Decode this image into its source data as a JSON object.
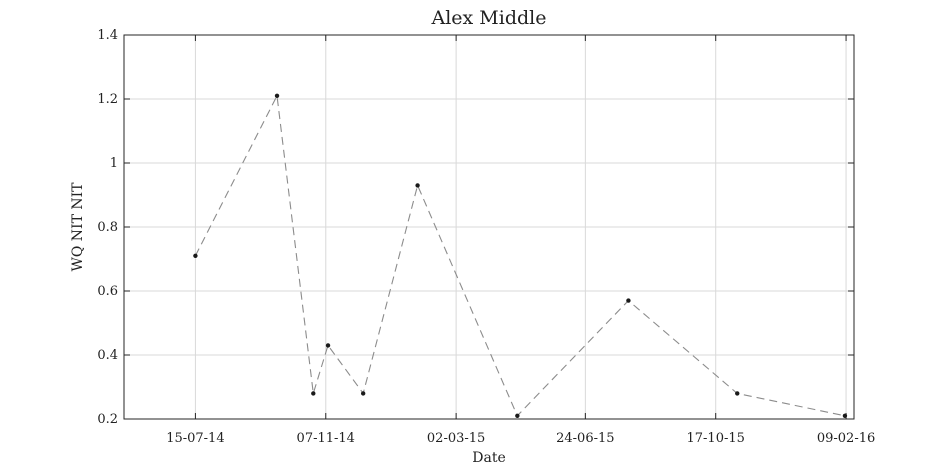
{
  "chart_data": {
    "type": "line",
    "title": "Alex Middle",
    "xlabel": "Date",
    "ylabel": "WQ NIT NIT",
    "x_axis_type": "date",
    "x_tick_format": "DD-MM-YY",
    "xlim": [
      "2014-05-13",
      "2016-02-16"
    ],
    "ylim": [
      0.2,
      1.4
    ],
    "x_ticks": [
      "2014-07-15",
      "2014-11-07",
      "2015-03-02",
      "2015-06-24",
      "2015-10-17",
      "2016-02-09"
    ],
    "x_tick_labels": [
      "15-07-14",
      "07-11-14",
      "02-03-15",
      "24-06-15",
      "17-10-15",
      "09-02-16"
    ],
    "y_ticks": [
      0.2,
      0.4,
      0.6,
      0.8,
      1.0,
      1.2,
      1.4
    ],
    "y_tick_labels": [
      "0.2",
      "0.4",
      "0.6",
      "0.8",
      "1",
      "1.2",
      "1.4"
    ],
    "grid": true,
    "line_style": "dashed",
    "line_color": "#8c8c8c",
    "marker_color": "#1a1a1a",
    "series": [
      {
        "x": [
          "2014-07-15",
          "2014-09-25",
          "2014-10-27",
          "2014-11-09",
          "2014-12-10",
          "2015-01-27",
          "2015-04-25",
          "2015-08-01",
          "2015-11-05",
          "2016-02-08"
        ],
        "y": [
          0.71,
          1.21,
          0.28,
          0.43,
          0.28,
          0.93,
          0.21,
          0.57,
          0.28,
          0.21
        ]
      }
    ]
  }
}
